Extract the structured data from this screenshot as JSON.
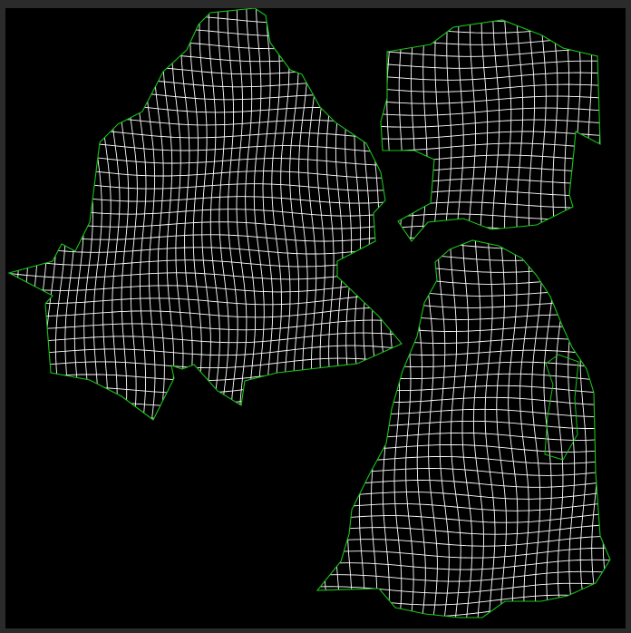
{
  "editor": {
    "view_type": "uv-layout-viewport",
    "background_color": "#000000",
    "frame_color": "#2b2b2b",
    "wire_color": "#ffffff",
    "seam_color": "#18c418",
    "islands": [
      {
        "name": "large-left-island"
      },
      {
        "name": "upper-right-island"
      },
      {
        "name": "lower-right-island"
      }
    ]
  }
}
